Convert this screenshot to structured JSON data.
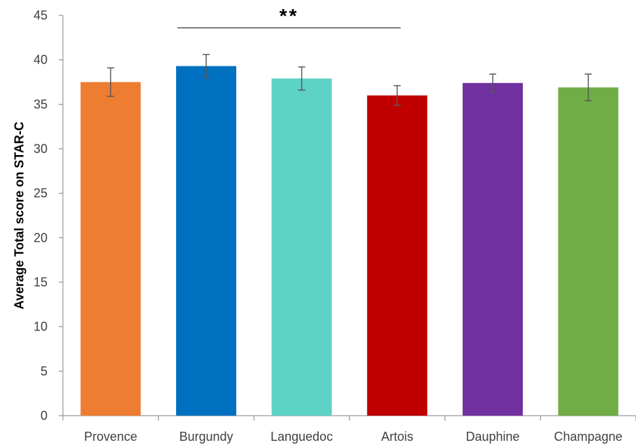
{
  "chart_data": {
    "type": "bar",
    "title": "",
    "xlabel": "",
    "ylabel": "Average Total score on STAR-C",
    "categories": [
      "Provence",
      "Burgundy",
      "Languedoc",
      "Artois",
      "Dauphine",
      "Champagne"
    ],
    "values": [
      37.5,
      39.3,
      37.9,
      36.0,
      37.4,
      36.9
    ],
    "error": [
      1.6,
      1.3,
      1.3,
      1.1,
      1.0,
      1.5
    ],
    "colors": [
      "#ED7D31",
      "#0070C0",
      "#5DD2C6",
      "#C00000",
      "#7030A0",
      "#70AD47"
    ],
    "ylim": [
      0,
      45
    ],
    "yticks": [
      0,
      5,
      10,
      15,
      20,
      25,
      30,
      35,
      40,
      45
    ],
    "grid": false,
    "legend": "none",
    "annotations": [
      {
        "text": "**",
        "from_category": "Burgundy",
        "to_category": "Artois",
        "y": 43.6
      }
    ]
  }
}
